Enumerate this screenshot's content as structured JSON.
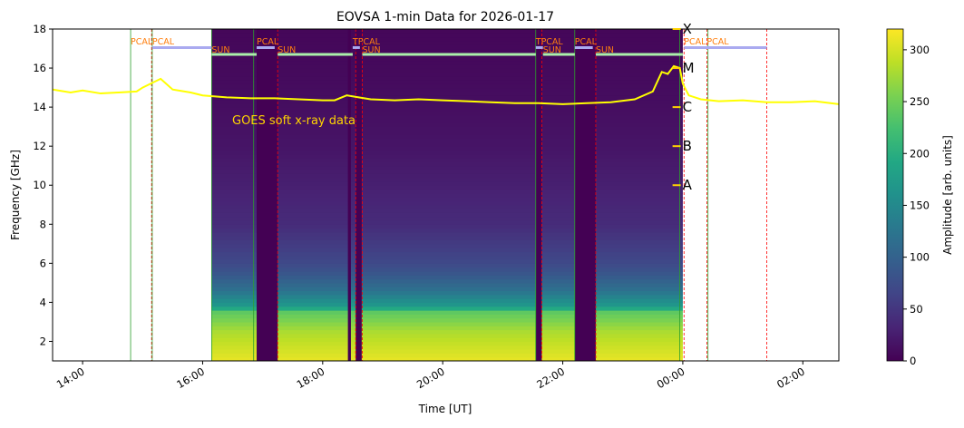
{
  "chart_data": {
    "type": "heatmap",
    "title": "EOVSA 1-min Data for 2026-01-17",
    "xlabel": "Time [UT]",
    "ylabel": "Frequency [GHz]",
    "x_unit": "hours UT (24+ = next day)",
    "xlim": [
      13.5,
      26.6
    ],
    "ylim": [
      1.0,
      18.0
    ],
    "xticks": [
      {
        "v": 14,
        "label": "14:00"
      },
      {
        "v": 16,
        "label": "16:00"
      },
      {
        "v": 18,
        "label": "18:00"
      },
      {
        "v": 20,
        "label": "20:00"
      },
      {
        "v": 22,
        "label": "22:00"
      },
      {
        "v": 24,
        "label": "00:00"
      },
      {
        "v": 26,
        "label": "02:00"
      }
    ],
    "yticks": [
      2,
      4,
      6,
      8,
      10,
      12,
      14,
      16,
      18
    ],
    "colorbar": {
      "label": "Amplitude [arb. units]",
      "min": 0,
      "max": 320,
      "ticks": [
        0,
        50,
        100,
        150,
        200,
        250,
        300
      ],
      "colormap": "viridis"
    },
    "data_span": [
      16.15,
      24.0
    ],
    "data_gaps": [
      [
        16.9,
        17.25
      ],
      [
        18.42,
        18.47
      ],
      [
        18.55,
        18.65
      ],
      [
        21.55,
        21.65
      ],
      [
        22.2,
        22.55
      ]
    ],
    "spectrogram_profile": {
      "freq": [
        1.0,
        1.5,
        2.0,
        2.5,
        3.0,
        3.5,
        3.8,
        4.2,
        4.6,
        5.0,
        5.5,
        6.0,
        7.0,
        8.0,
        10.0,
        12.0,
        14.0,
        16.0,
        18.0
      ],
      "amplitude": [
        310,
        300,
        290,
        280,
        260,
        240,
        170,
        150,
        120,
        105,
        85,
        70,
        55,
        40,
        28,
        18,
        12,
        8,
        5
      ]
    },
    "goes_series": {
      "label": "GOES soft x-ray data",
      "color": "#ffff00",
      "x": [
        13.5,
        13.8,
        14.0,
        14.3,
        14.6,
        14.9,
        15.0,
        15.2,
        15.3,
        15.5,
        15.8,
        16.0,
        16.4,
        16.8,
        17.2,
        17.6,
        18.0,
        18.2,
        18.4,
        18.6,
        18.8,
        19.2,
        19.6,
        20.0,
        20.4,
        20.8,
        21.2,
        21.6,
        22.0,
        22.4,
        22.8,
        23.2,
        23.5,
        23.65,
        23.75,
        23.85,
        23.95,
        24.0,
        24.1,
        24.3,
        24.6,
        25.0,
        25.4,
        25.8,
        26.2,
        26.6
      ],
      "y": [
        14.9,
        14.75,
        14.85,
        14.7,
        14.75,
        14.8,
        15.0,
        15.3,
        15.45,
        14.9,
        14.75,
        14.6,
        14.5,
        14.45,
        14.45,
        14.4,
        14.35,
        14.35,
        14.6,
        14.5,
        14.4,
        14.35,
        14.4,
        14.35,
        14.3,
        14.25,
        14.2,
        14.2,
        14.15,
        14.2,
        14.25,
        14.4,
        14.8,
        15.8,
        15.7,
        16.1,
        16.0,
        15.2,
        14.6,
        14.4,
        14.3,
        14.35,
        14.25,
        14.25,
        14.3,
        14.15
      ]
    },
    "goes_annotation": "GOES soft x-ray data",
    "goes_class_ticks": [
      {
        "label": "X",
        "freq": 18.0
      },
      {
        "label": "M",
        "freq": 16.0
      },
      {
        "label": "C",
        "freq": 14.0
      },
      {
        "label": "B",
        "freq": 12.0
      },
      {
        "label": "A",
        "freq": 10.0
      }
    ],
    "scan_lines": [
      {
        "t": 14.8,
        "color": "#2ca02c"
      },
      {
        "t": 15.15,
        "color": "#ff0000"
      },
      {
        "t": 15.16,
        "color": "#2ca02c"
      },
      {
        "t": 16.15,
        "color": "#2ca02c"
      },
      {
        "t": 16.85,
        "color": "#2ca02c"
      },
      {
        "t": 17.25,
        "color": "#ff0000"
      },
      {
        "t": 18.55,
        "color": "#ff0000"
      },
      {
        "t": 18.66,
        "color": "#ff0000"
      },
      {
        "t": 21.55,
        "color": "#2ca02c"
      },
      {
        "t": 21.65,
        "color": "#ff0000"
      },
      {
        "t": 22.2,
        "color": "#2ca02c"
      },
      {
        "t": 22.55,
        "color": "#ff0000"
      },
      {
        "t": 23.95,
        "color": "#2ca02c"
      },
      {
        "t": 24.02,
        "color": "#ff0000"
      },
      {
        "t": 24.4,
        "color": "#ff0000"
      },
      {
        "t": 24.42,
        "color": "#2ca02c"
      },
      {
        "t": 25.4,
        "color": "#ff0000"
      }
    ],
    "schedule_bars": [
      {
        "start": 15.16,
        "end": 16.15,
        "freq": 17.05,
        "color": "#aaaaf0"
      },
      {
        "start": 16.15,
        "end": 16.9,
        "freq": 16.7,
        "color": "#aaf0aa"
      },
      {
        "start": 16.9,
        "end": 17.2,
        "freq": 17.05,
        "color": "#aaaaf0"
      },
      {
        "start": 17.25,
        "end": 18.5,
        "freq": 16.7,
        "color": "#aaf0aa"
      },
      {
        "start": 18.5,
        "end": 18.62,
        "freq": 17.05,
        "color": "#aaaaf0"
      },
      {
        "start": 18.66,
        "end": 21.55,
        "freq": 16.7,
        "color": "#aaf0aa"
      },
      {
        "start": 21.55,
        "end": 21.67,
        "freq": 17.05,
        "color": "#aaaaf0"
      },
      {
        "start": 21.67,
        "end": 22.2,
        "freq": 16.7,
        "color": "#aaf0aa"
      },
      {
        "start": 22.2,
        "end": 22.5,
        "freq": 17.05,
        "color": "#aaaaf0"
      },
      {
        "start": 22.55,
        "end": 24.0,
        "freq": 16.7,
        "color": "#aaf0aa"
      },
      {
        "start": 24.02,
        "end": 25.4,
        "freq": 17.05,
        "color": "#aaaaf0"
      }
    ],
    "schedule_labels": [
      {
        "text": "PCAL",
        "t": 14.8,
        "freq": 17.2
      },
      {
        "text": "PCAL",
        "t": 15.16,
        "freq": 17.2
      },
      {
        "text": "SUN",
        "t": 16.15,
        "freq": 16.8
      },
      {
        "text": "PCAL",
        "t": 16.9,
        "freq": 17.2
      },
      {
        "text": "SUN",
        "t": 17.25,
        "freq": 16.8
      },
      {
        "text": "TPCAL",
        "t": 18.5,
        "freq": 17.2
      },
      {
        "text": "SUN",
        "t": 18.66,
        "freq": 16.8
      },
      {
        "text": "TPCAL",
        "t": 21.55,
        "freq": 17.2
      },
      {
        "text": "SUN",
        "t": 21.67,
        "freq": 16.8
      },
      {
        "text": "PCAL",
        "t": 22.2,
        "freq": 17.2
      },
      {
        "text": "SUN",
        "t": 22.55,
        "freq": 16.8
      },
      {
        "text": "PCAL",
        "t": 24.02,
        "freq": 17.2
      },
      {
        "text": "PCAL",
        "t": 24.4,
        "freq": 17.2
      }
    ]
  }
}
